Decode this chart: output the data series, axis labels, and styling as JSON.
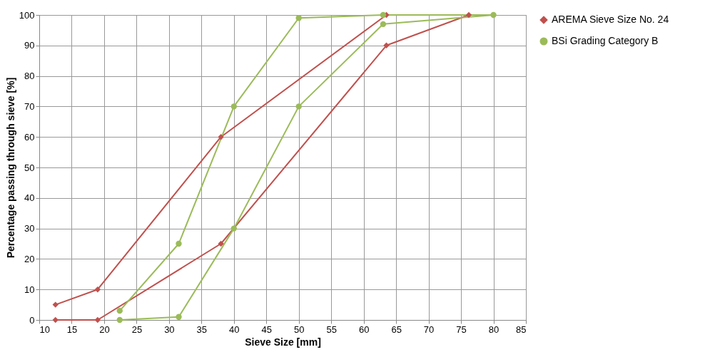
{
  "chart_data": {
    "type": "line",
    "xlabel": "Sieve Size [mm]",
    "ylabel": "Percentage passing through sieve [%]",
    "xlim": [
      10,
      85
    ],
    "xticks": [
      10,
      15,
      20,
      25,
      30,
      35,
      40,
      45,
      50,
      55,
      60,
      65,
      70,
      75,
      80,
      85
    ],
    "ylim": [
      0,
      100
    ],
    "yticks": [
      0,
      10,
      20,
      30,
      40,
      50,
      60,
      70,
      80,
      90,
      100
    ],
    "grid": true,
    "legend": "right",
    "series": [
      {
        "name": "AREMA Sieve Size No. 24",
        "color": "#c0504d",
        "marker": "diamond",
        "x": [
          12.5,
          19,
          38,
          63.5,
          76.2,
          63.5,
          38,
          19,
          12.5
        ],
        "values": [
          0,
          0,
          25,
          90,
          100,
          100,
          60,
          10,
          5
        ]
      },
      {
        "name": "BSi Grading Category B",
        "color": "#9bbb59",
        "marker": "circle",
        "x": [
          22.4,
          31.5,
          40,
          50,
          63,
          80,
          63,
          50,
          40,
          31.5,
          22.4
        ],
        "values": [
          0,
          1,
          30,
          70,
          97,
          100,
          100,
          99,
          70,
          25,
          3
        ]
      }
    ]
  }
}
